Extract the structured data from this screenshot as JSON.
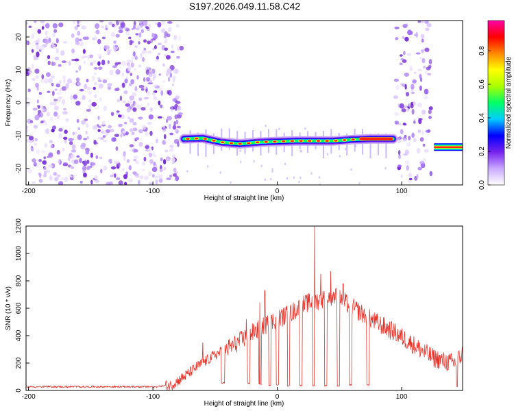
{
  "title": "S197.2026.049.11.58.C42",
  "colors": {
    "snr_line": "#e8332a",
    "noise": "#8a4ee0",
    "track": "#ff2020"
  },
  "chart_data": [
    {
      "type": "heatmap",
      "xlabel": "Height of straight line (km)",
      "ylabel": "Frequency (Hz)",
      "xlim": [
        -202,
        149
      ],
      "ylim": [
        -25,
        25
      ],
      "x_ticks": [
        -200,
        -100,
        0,
        100
      ],
      "x_tick_labels": [
        "-200",
        "-100",
        "0",
        "100"
      ],
      "y_ticks": [
        -20,
        -10,
        0,
        10,
        20
      ],
      "y_tick_labels": [
        "-20",
        "-10",
        "0",
        "10",
        "20"
      ],
      "colorbar": {
        "label": "Normalized spectral amplitude",
        "range": [
          0,
          0.98
        ],
        "ticks": [
          0.0,
          0.2,
          0.4,
          0.6,
          0.8
        ],
        "tick_labels": [
          "0.0",
          "0.2",
          "0.4",
          "0.6",
          "0.8"
        ],
        "colors": [
          "#ffffff",
          "#c9a9ff",
          "#7722ee",
          "#0000ff",
          "#00ccff",
          "#00ff66",
          "#aaff00",
          "#ffff00",
          "#ff8800",
          "#ff0000",
          "#ff00aa"
        ]
      },
      "noise_regions": [
        {
          "x_from": -202,
          "x_to": -77
        },
        {
          "x_from": 94,
          "x_to": 125
        }
      ],
      "signal_track": [
        {
          "x": -75,
          "freq": -11.0
        },
        {
          "x": -60,
          "freq": -10.8
        },
        {
          "x": -45,
          "freq": -12.0
        },
        {
          "x": -30,
          "freq": -12.5
        },
        {
          "x": -15,
          "freq": -12.0
        },
        {
          "x": 0,
          "freq": -11.8
        },
        {
          "x": 15,
          "freq": -11.6
        },
        {
          "x": 30,
          "freq": -11.6
        },
        {
          "x": 45,
          "freq": -11.6
        },
        {
          "x": 60,
          "freq": -11.2
        },
        {
          "x": 75,
          "freq": -11.0
        },
        {
          "x": 93,
          "freq": -11.0
        }
      ],
      "late_track": [
        {
          "x": 126,
          "freq": -13.5
        },
        {
          "x": 149,
          "freq": -13.5
        }
      ]
    },
    {
      "type": "line",
      "xlabel": "Height of straight line (km)",
      "ylabel": "SNR (10 * v/v)",
      "xlim": [
        -202,
        149
      ],
      "ylim": [
        0,
        1200
      ],
      "x_ticks": [
        -200,
        -100,
        0,
        100
      ],
      "x_tick_labels": [
        "-200",
        "-100",
        "0",
        "100"
      ],
      "y_ticks": [
        0,
        200,
        400,
        600,
        800,
        1000,
        1200
      ],
      "y_tick_labels": [
        "0",
        "200",
        "400",
        "600",
        "800",
        "1000",
        "1200"
      ],
      "envelope": [
        {
          "x": -202,
          "y": 25
        },
        {
          "x": -150,
          "y": 25
        },
        {
          "x": -100,
          "y": 25
        },
        {
          "x": -85,
          "y": 40
        },
        {
          "x": -75,
          "y": 100
        },
        {
          "x": -65,
          "y": 170
        },
        {
          "x": -50,
          "y": 260
        },
        {
          "x": -35,
          "y": 330
        },
        {
          "x": -20,
          "y": 420
        },
        {
          "x": -5,
          "y": 500
        },
        {
          "x": 10,
          "y": 560
        },
        {
          "x": 20,
          "y": 620
        },
        {
          "x": 25,
          "y": 640
        },
        {
          "x": 30,
          "y": 650
        },
        {
          "x": 35,
          "y": 660
        },
        {
          "x": 40,
          "y": 680
        },
        {
          "x": 45,
          "y": 690
        },
        {
          "x": 50,
          "y": 680
        },
        {
          "x": 55,
          "y": 640
        },
        {
          "x": 65,
          "y": 580
        },
        {
          "x": 75,
          "y": 520
        },
        {
          "x": 85,
          "y": 470
        },
        {
          "x": 95,
          "y": 420
        },
        {
          "x": 105,
          "y": 360
        },
        {
          "x": 115,
          "y": 300
        },
        {
          "x": 125,
          "y": 240
        },
        {
          "x": 135,
          "y": 210
        },
        {
          "x": 143,
          "y": 200
        },
        {
          "x": 149,
          "y": 270
        }
      ],
      "dropouts": [
        {
          "x_from": -45,
          "x_to": -42,
          "y": 50
        },
        {
          "x_from": -24,
          "x_to": -22,
          "y": 45
        },
        {
          "x_from": -15,
          "x_to": -13,
          "y": 40
        },
        {
          "x_from": -7,
          "x_to": -5,
          "y": 35
        },
        {
          "x_from": -1,
          "x_to": 1,
          "y": 35
        },
        {
          "x_from": 8,
          "x_to": 10,
          "y": 30
        },
        {
          "x_from": 18,
          "x_to": 20,
          "y": 30
        },
        {
          "x_from": 28,
          "x_to": 30,
          "y": 30
        },
        {
          "x_from": 38,
          "x_to": 40,
          "y": 30
        },
        {
          "x_from": 48,
          "x_to": 50,
          "y": 30
        },
        {
          "x_from": 58,
          "x_to": 60,
          "y": 35
        },
        {
          "x_from": 72,
          "x_to": 74,
          "y": 35
        },
        {
          "x_from": 144,
          "x_to": 145,
          "y": 25
        }
      ],
      "spikes": [
        {
          "x": -60,
          "y": 350
        },
        {
          "x": -42,
          "y": 330
        },
        {
          "x": -25,
          "y": 520
        },
        {
          "x": -14,
          "y": 640
        },
        {
          "x": -10,
          "y": 730
        },
        {
          "x": 30,
          "y": 1200
        },
        {
          "x": 35,
          "y": 850
        },
        {
          "x": 43,
          "y": 870
        },
        {
          "x": 53,
          "y": 780
        }
      ]
    }
  ]
}
